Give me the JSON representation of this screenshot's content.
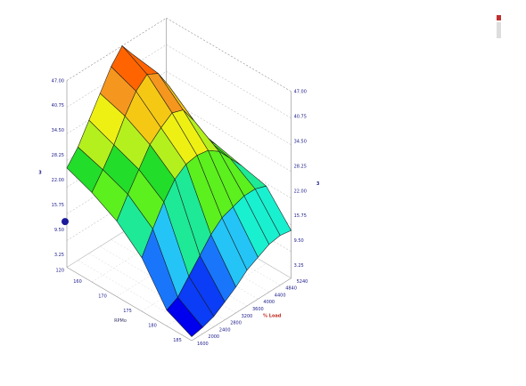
{
  "chart_data": {
    "type": "surface3d",
    "title": "",
    "left_axis": {
      "title": "3",
      "ticks": [
        "47.00",
        "40.75",
        "34.50",
        "28.25",
        "22.00",
        "15.75",
        "9.50",
        "3.25",
        "120"
      ]
    },
    "right_axis": {
      "title": "3",
      "ticks": [
        "47.00",
        "40.75",
        "34.50",
        "28.25",
        "22.00",
        "15.75",
        "9.50",
        "3.25"
      ]
    },
    "x_axis": {
      "title": "RPMo",
      "ticks": [
        "160",
        "170",
        "175",
        "180",
        "185"
      ]
    },
    "depth_axis": {
      "title": "% Load",
      "ticks": [
        "5240",
        "4840",
        "4400",
        "4000",
        "3600",
        "3200",
        "2800",
        "2400",
        "2000",
        "1600"
      ]
    },
    "z": [
      [
        1.0,
        1.6,
        2.6,
        4.5,
        6.5,
        9.0,
        10.5,
        12.0,
        12.5,
        12.0
      ],
      [
        4.0,
        5.5,
        9.0,
        12.5,
        16.0,
        18.5,
        19.5,
        20.5,
        20.5,
        19.5
      ],
      [
        13.5,
        19.0,
        24.0,
        28.0,
        30.0,
        30.5,
        30.0,
        28.0,
        24.5,
        21.0
      ],
      [
        19.0,
        24.0,
        28.5,
        33.0,
        35.5,
        37.5,
        36.5,
        32.0,
        26.0,
        22.5
      ],
      [
        22.5,
        26.5,
        31.0,
        36.5,
        41.0,
        43.5,
        42.0,
        37.0,
        29.0,
        24.0
      ],
      [
        25.0,
        28.5,
        33.5,
        38.5,
        43.5,
        47.0,
        43.0,
        38.0,
        31.0,
        25.0
      ]
    ],
    "z_range": [
      0,
      47
    ],
    "colorscale": [
      "#0000ee",
      "#0b3cf6",
      "#1976fa",
      "#24c4f6",
      "#19f0d0",
      "#1ee996",
      "#5cf01e",
      "#22dd2a",
      "#b4f01e",
      "#eef014",
      "#f5c814",
      "#f5961e",
      "#ff6400"
    ],
    "grid": true,
    "legend": "none"
  }
}
